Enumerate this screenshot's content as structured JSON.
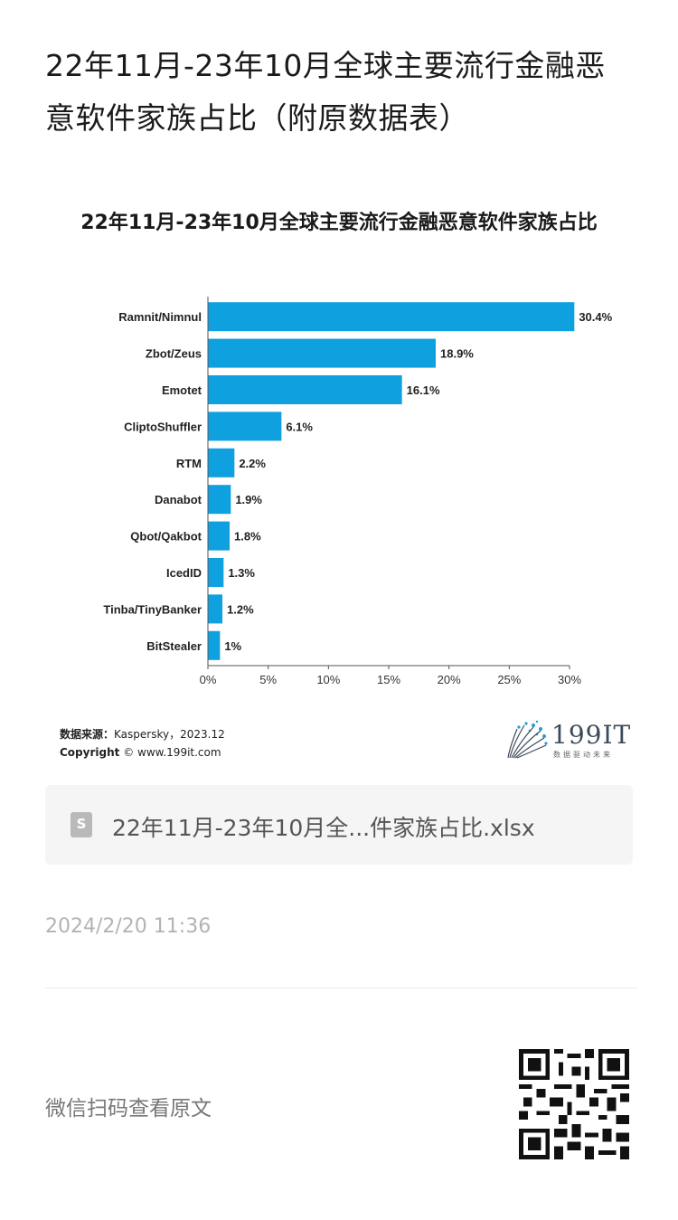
{
  "article": {
    "title": "22年11月-23年10月全球主要流行金融恶意软件家族占比（附原数据表）"
  },
  "chart_data": {
    "type": "bar",
    "orientation": "horizontal",
    "title": "22年11月-23年10月全球主要流行金融恶意软件家族占比",
    "categories": [
      "Ramnit/Nimnul",
      "Zbot/Zeus",
      "Emotet",
      "CliptoShuffler",
      "RTM",
      "Danabot",
      "Qbot/Qakbot",
      "IcedID",
      "Tinba/TinyBanker",
      "BitStealer"
    ],
    "values": [
      30.4,
      18.9,
      16.1,
      6.1,
      2.2,
      1.9,
      1.8,
      1.3,
      1.2,
      1
    ],
    "value_labels": [
      "30.4%",
      "18.9%",
      "16.1%",
      "6.1%",
      "2.2%",
      "1.9%",
      "1.8%",
      "1.3%",
      "1.2%",
      "1%"
    ],
    "xlim": [
      0,
      30
    ],
    "xticks": [
      0,
      5,
      10,
      15,
      20,
      25,
      30
    ],
    "xtick_labels": [
      "0%",
      "5%",
      "10%",
      "15%",
      "20%",
      "25%",
      "30%"
    ],
    "bar_color": "#0fa0e0",
    "grid": false
  },
  "source": {
    "label": "数据来源：",
    "text": "Kaspersky，2023.12",
    "copyright_label": "Copyright",
    "copyright_text": "©  www.199it.com"
  },
  "logo": {
    "text": "199IT",
    "subtitle": "数据驱动未来"
  },
  "attachment": {
    "file_name": "22年11月-23年10月全...件家族占比.xlsx",
    "icon": "spreadsheet-file-icon"
  },
  "date": "2024/2/20 11:36",
  "footer": {
    "scan_text": "微信扫码查看原文",
    "qr_icon": "qr-code-icon"
  }
}
